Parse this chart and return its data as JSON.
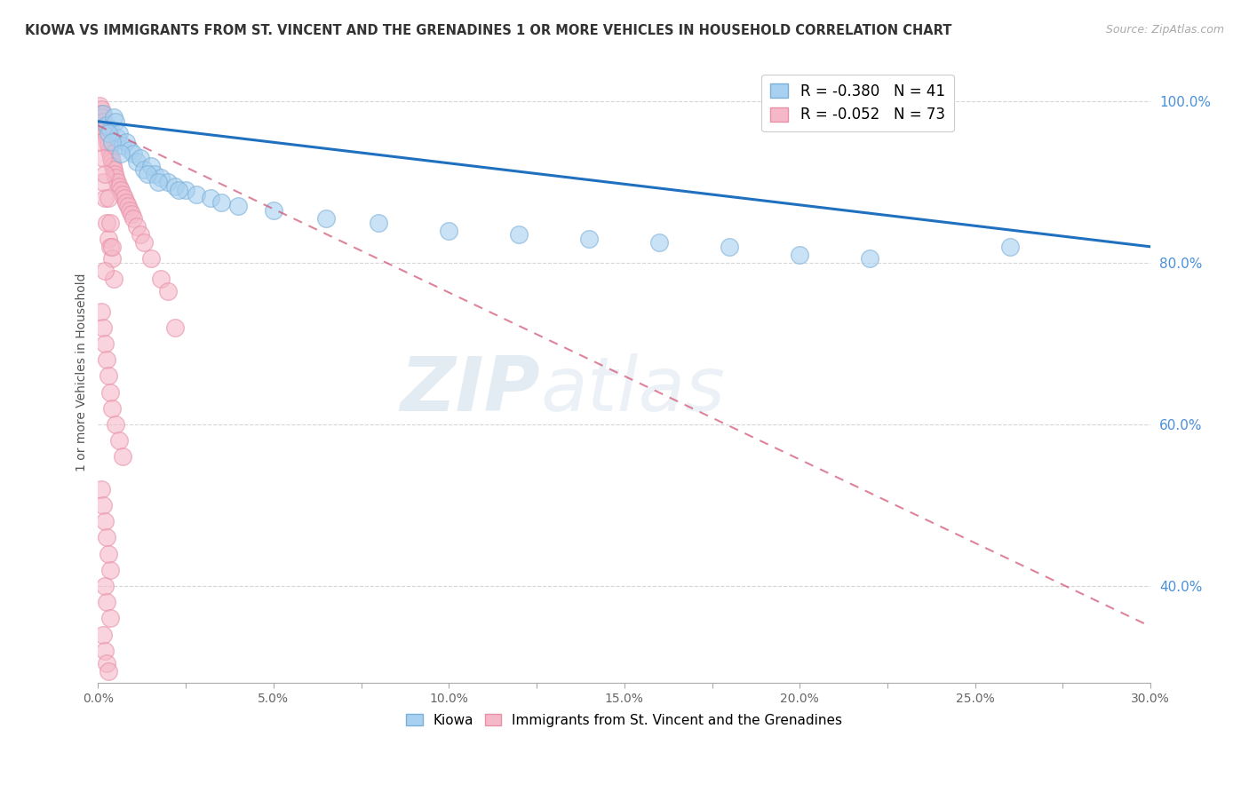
{
  "title": "KIOWA VS IMMIGRANTS FROM ST. VINCENT AND THE GRENADINES 1 OR MORE VEHICLES IN HOUSEHOLD CORRELATION CHART",
  "source": "Source: ZipAtlas.com",
  "xlabel_ticks": [
    "0.0%",
    "",
    "5.0%",
    "",
    "10.0%",
    "",
    "15.0%",
    "",
    "20.0%",
    "",
    "25.0%",
    "",
    "30.0%"
  ],
  "xlabel_vals": [
    0.0,
    2.5,
    5.0,
    7.5,
    10.0,
    12.5,
    15.0,
    17.5,
    20.0,
    22.5,
    25.0,
    27.5,
    30.0
  ],
  "ylabel": "1 or more Vehicles in Household",
  "ylabel_ticks": [
    "100.0%",
    "80.0%",
    "60.0%",
    "40.0%"
  ],
  "ylabel_vals": [
    100.0,
    80.0,
    60.0,
    40.0
  ],
  "xlim": [
    0.0,
    30.0
  ],
  "ylim": [
    28.0,
    105.0
  ],
  "legend_blue_label": "R = -0.380   N = 41",
  "legend_pink_label": "R = -0.052   N = 73",
  "blue_color": "#a8d0f0",
  "pink_color": "#f5b8c8",
  "blue_edge_color": "#7ab0d8",
  "pink_edge_color": "#e890a8",
  "blue_line_color": "#2070c0",
  "pink_line_color": "#d05070",
  "watermark_zip": "ZIP",
  "watermark_atlas": "atlas",
  "blue_line_x0": 0.0,
  "blue_line_x1": 30.0,
  "blue_line_y0": 97.5,
  "blue_line_y1": 82.0,
  "pink_line_x0": 0.0,
  "pink_line_x1": 30.0,
  "pink_line_y0": 97.0,
  "pink_line_y1": 35.0,
  "kiowa_x": [
    0.15,
    0.25,
    0.35,
    0.45,
    0.5,
    0.55,
    0.6,
    0.7,
    0.8,
    0.9,
    1.0,
    1.1,
    1.2,
    1.3,
    1.5,
    1.6,
    1.8,
    2.0,
    2.2,
    2.5,
    2.8,
    3.2,
    3.5,
    4.0,
    5.0,
    6.5,
    8.0,
    10.0,
    12.0,
    14.0,
    16.0,
    18.0,
    20.0,
    22.0,
    0.3,
    0.4,
    0.65,
    1.4,
    1.7,
    2.3,
    26.0
  ],
  "kiowa_y": [
    98.5,
    97.0,
    96.5,
    98.0,
    97.5,
    95.5,
    96.0,
    94.5,
    95.0,
    94.0,
    93.5,
    92.5,
    93.0,
    91.5,
    92.0,
    91.0,
    90.5,
    90.0,
    89.5,
    89.0,
    88.5,
    88.0,
    87.5,
    87.0,
    86.5,
    85.5,
    85.0,
    84.0,
    83.5,
    83.0,
    82.5,
    82.0,
    81.0,
    80.5,
    96.0,
    95.0,
    93.5,
    91.0,
    90.0,
    89.0,
    82.0
  ],
  "pink_x": [
    0.05,
    0.08,
    0.1,
    0.12,
    0.15,
    0.18,
    0.2,
    0.22,
    0.25,
    0.28,
    0.3,
    0.32,
    0.35,
    0.38,
    0.4,
    0.42,
    0.45,
    0.48,
    0.5,
    0.55,
    0.6,
    0.65,
    0.7,
    0.75,
    0.8,
    0.85,
    0.9,
    0.95,
    1.0,
    1.1,
    1.2,
    1.3,
    1.5,
    1.8,
    2.0,
    0.1,
    0.15,
    0.2,
    0.25,
    0.3,
    0.35,
    0.4,
    0.5,
    0.6,
    0.7,
    0.1,
    0.15,
    0.2,
    0.25,
    0.3,
    0.35,
    0.2,
    0.25,
    0.35,
    0.15,
    0.2,
    0.25,
    0.3,
    2.2,
    0.25,
    0.3,
    0.2,
    0.15,
    0.35,
    0.4,
    0.45,
    0.1,
    0.15,
    0.2,
    0.3,
    0.35,
    0.4,
    0.18
  ],
  "pink_y": [
    99.5,
    99.0,
    98.5,
    98.0,
    97.5,
    97.0,
    96.5,
    96.0,
    95.5,
    95.0,
    94.5,
    94.0,
    93.5,
    93.0,
    92.5,
    92.0,
    91.5,
    91.0,
    90.5,
    90.0,
    89.5,
    89.0,
    88.5,
    88.0,
    87.5,
    87.0,
    86.5,
    86.0,
    85.5,
    84.5,
    83.5,
    82.5,
    80.5,
    78.0,
    76.5,
    74.0,
    72.0,
    70.0,
    68.0,
    66.0,
    64.0,
    62.0,
    60.0,
    58.0,
    56.0,
    52.0,
    50.0,
    48.0,
    46.0,
    44.0,
    42.0,
    40.0,
    38.0,
    36.0,
    34.0,
    32.0,
    30.5,
    29.5,
    72.0,
    85.0,
    83.0,
    88.0,
    90.0,
    82.0,
    80.5,
    78.0,
    95.0,
    93.0,
    91.0,
    88.0,
    85.0,
    82.0,
    79.0
  ]
}
